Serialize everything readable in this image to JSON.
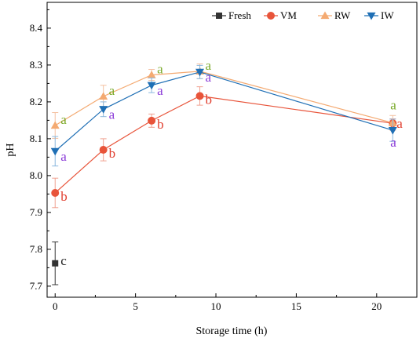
{
  "chart_data": {
    "type": "line",
    "title": "",
    "xlabel": "Storage time (h)",
    "ylabel": "pH",
    "xlim": [
      -0.5,
      22.5
    ],
    "ylim": [
      7.67,
      8.47
    ],
    "xticks": [
      0,
      5,
      10,
      15,
      20
    ],
    "yticks": [
      7.7,
      7.8,
      7.9,
      8.0,
      8.1,
      8.2,
      8.3,
      8.4
    ],
    "ytick_labels": [
      "7.7",
      "7.8",
      "7.9",
      "8.0",
      "8.1",
      "8.2",
      "8.3",
      "8.4"
    ],
    "legend_position": "top-right",
    "grid": false,
    "series": [
      {
        "name": "Fresh",
        "color": "#333333",
        "marker": "square",
        "line": false,
        "x": [
          0
        ],
        "y": [
          7.762
        ],
        "err": [
          0.058
        ],
        "sig": [
          "c"
        ],
        "sig_color": "#222222"
      },
      {
        "name": "VM",
        "color": "#e8543a",
        "err_color": "#f0a090",
        "marker": "circle",
        "line": true,
        "x": [
          0,
          3,
          6,
          9,
          21
        ],
        "y": [
          7.953,
          8.07,
          8.149,
          8.216,
          8.142
        ],
        "err": [
          0.04,
          0.03,
          0.018,
          0.025,
          0.012
        ],
        "sig": [
          "b",
          "b",
          "b",
          "b",
          "a"
        ],
        "sig_color": "#e03a2a"
      },
      {
        "name": "RW",
        "color": "#f4aa72",
        "err_color": "#f4c0a0",
        "marker": "triangle-up",
        "line": true,
        "x": [
          0,
          3,
          6,
          9,
          21
        ],
        "y": [
          8.136,
          8.215,
          8.273,
          8.283,
          8.143
        ],
        "err": [
          0.035,
          0.03,
          0.015,
          0.02,
          0.02
        ],
        "sig": [
          "a",
          "a",
          "a",
          "a",
          "a"
        ],
        "sig_color": "#7aaa2a"
      },
      {
        "name": "IW",
        "color": "#1f6fb5",
        "err_color": "#8ab8de",
        "marker": "triangle-down",
        "line": true,
        "x": [
          0,
          3,
          6,
          9,
          21
        ],
        "y": [
          8.066,
          8.18,
          8.245,
          8.281,
          8.123
        ],
        "err": [
          0.04,
          0.02,
          0.02,
          0.018,
          0.03
        ],
        "sig": [
          "a",
          "a",
          "a",
          "a",
          "a"
        ],
        "sig_color": "#8a3ad8"
      }
    ]
  }
}
